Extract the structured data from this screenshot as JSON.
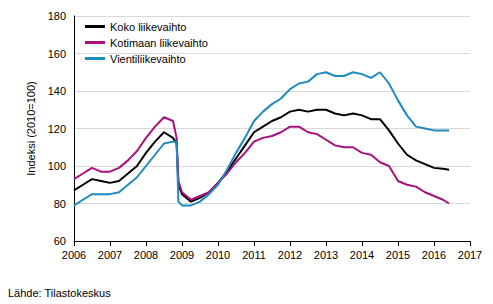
{
  "chart_data": {
    "type": "line",
    "y_label": "Indeksi (2010=100)",
    "source": "Lähde: Tilastokeskus",
    "legend": "top-left",
    "grid": true,
    "xlim": [
      2006,
      2017
    ],
    "xticks": [
      2006,
      2007,
      2008,
      2009,
      2010,
      2011,
      2012,
      2013,
      2014,
      2015,
      2016,
      2017
    ],
    "ylim": [
      60,
      180
    ],
    "yticks": [
      60,
      80,
      100,
      120,
      140,
      160,
      180
    ],
    "x": [
      2006.0,
      2006.25,
      2006.5,
      2006.75,
      2007.0,
      2007.25,
      2007.5,
      2007.75,
      2008.0,
      2008.25,
      2008.5,
      2008.75,
      2008.85,
      2008.9,
      2009.0,
      2009.25,
      2009.5,
      2009.75,
      2010.0,
      2010.25,
      2010.5,
      2010.75,
      2011.0,
      2011.25,
      2011.5,
      2011.75,
      2012.0,
      2012.25,
      2012.5,
      2012.75,
      2013.0,
      2013.25,
      2013.5,
      2013.75,
      2014.0,
      2014.25,
      2014.5,
      2014.75,
      2015.0,
      2015.25,
      2015.5,
      2015.75,
      2016.0,
      2016.25,
      2016.42
    ],
    "series": [
      {
        "name": "Koko liikevaihto",
        "color": "#000000",
        "values": [
          87,
          90,
          93,
          92,
          91,
          92,
          96,
          100,
          107,
          113,
          118,
          115,
          112,
          90,
          85,
          81,
          83,
          86,
          91,
          97,
          104,
          111,
          118,
          121,
          124,
          126,
          129,
          130,
          129,
          130,
          130,
          128,
          127,
          128,
          127,
          125,
          125,
          119,
          112,
          106,
          103,
          101,
          99,
          98.5,
          98
        ]
      },
      {
        "name": "Kotimaan liikevaihto",
        "color": "#a8117c",
        "values": [
          93,
          96,
          99,
          97,
          97,
          99,
          103,
          108,
          115,
          121,
          126,
          124,
          115,
          92,
          86,
          82,
          84,
          86,
          91,
          96,
          102,
          107,
          113,
          115,
          116,
          118,
          121,
          121,
          118,
          117,
          114,
          111,
          110,
          110,
          107,
          106,
          102,
          100,
          92,
          90,
          89,
          86,
          84,
          82,
          80
        ]
      },
      {
        "name": "Vientiliikevaihto",
        "color": "#1f8ac0",
        "values": [
          79,
          82,
          85,
          85,
          85,
          86,
          90,
          94,
          100,
          106,
          112,
          113,
          113,
          81,
          79,
          79,
          81,
          85,
          90,
          98,
          107,
          115,
          124,
          129,
          133,
          136,
          141,
          144,
          145,
          149,
          150,
          148,
          148,
          150,
          149,
          147,
          150,
          144,
          135,
          127,
          121,
          120,
          119,
          119,
          119
        ]
      }
    ]
  }
}
